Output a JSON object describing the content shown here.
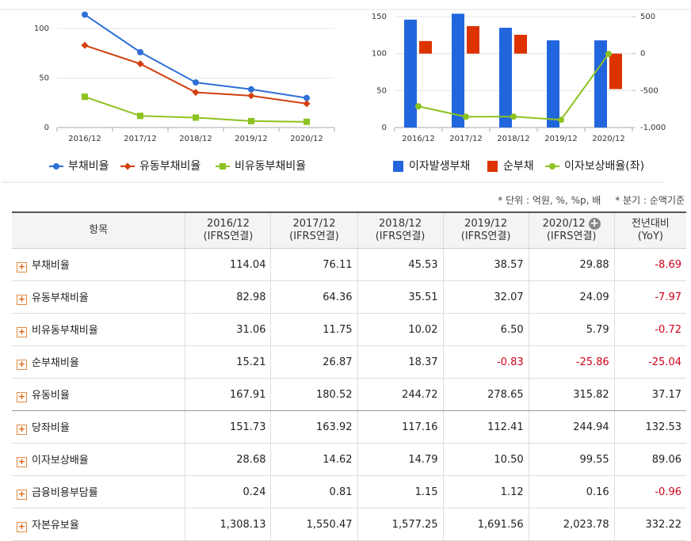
{
  "chart_data": [
    {
      "type": "line",
      "categories": [
        "2016/12",
        "2017/12",
        "2018/12",
        "2019/12",
        "2020/12"
      ],
      "series": [
        {
          "name": "부채비율",
          "color": "#2f6fd6",
          "marker": "circle",
          "values": [
            114.04,
            76.11,
            45.53,
            38.57,
            29.88
          ]
        },
        {
          "name": "유동부채비율",
          "color": "#d23f0f",
          "marker": "diamond",
          "values": [
            82.98,
            64.36,
            35.51,
            32.07,
            24.09
          ]
        },
        {
          "name": "비유동부채비율",
          "color": "#8cc21f",
          "marker": "square",
          "values": [
            31.06,
            11.75,
            10.02,
            6.5,
            5.79
          ]
        }
      ],
      "ylim": [
        0,
        120
      ],
      "yticks": [
        0,
        50,
        100
      ],
      "grid": true,
      "legend": "bottom"
    },
    {
      "type": "bar",
      "categories": [
        "2016/12",
        "2017/12",
        "2018/12",
        "2019/12",
        "2020/12"
      ],
      "series": [
        {
          "name": "이자발생부채",
          "color": "#2266dd",
          "type": "bar",
          "values": [
            146,
            154,
            135,
            118,
            118
          ]
        },
        {
          "name": "순부채",
          "color": "#dd3300",
          "type": "bar",
          "axis": "y2",
          "values": [
            170,
            372,
            255,
            null,
            -480
          ]
        },
        {
          "name": "이자보상배율(좌)",
          "color": "#8cc21f",
          "type": "line",
          "marker": "circle",
          "values": [
            28.68,
            14.62,
            14.79,
            10.5,
            99.55
          ]
        }
      ],
      "ylim": [
        0,
        160
      ],
      "yticks": [
        0,
        50,
        100,
        150
      ],
      "y2lim": [
        -1000,
        600
      ],
      "y2ticks": [
        {
          "value": -1000,
          "label": "-1,000"
        },
        -500,
        0,
        500
      ],
      "grid": true,
      "legend": "bottom"
    }
  ],
  "notes": [
    "* 단위 : 억원, %, %p, 배",
    "* 분기 : 순액기준"
  ],
  "table": {
    "header": [
      "항목",
      {
        "period": "2016/12",
        "basis": "(IFRS연결)"
      },
      {
        "period": "2017/12",
        "basis": "(IFRS연결)"
      },
      {
        "period": "2018/12",
        "basis": "(IFRS연결)"
      },
      {
        "period": "2019/12",
        "basis": "(IFRS연결)"
      },
      {
        "period": "2020/12",
        "basis": "(IFRS연결)"
      },
      {
        "period": "전년대비",
        "basis": "(YoY)"
      }
    ],
    "rows": [
      [
        "부채비율",
        "114.04",
        "76.11",
        "45.53",
        "38.57",
        "29.88",
        "-8.69"
      ],
      [
        "유동부채비율",
        "82.98",
        "64.36",
        "35.51",
        "32.07",
        "24.09",
        "-7.97"
      ],
      [
        "비유동부채비율",
        "31.06",
        "11.75",
        "10.02",
        "6.50",
        "5.79",
        "-0.72"
      ],
      [
        "순부채비율",
        "15.21",
        "26.87",
        "18.37",
        "-0.83",
        "-25.86",
        "-25.04"
      ],
      [
        "유동비율",
        "167.91",
        "180.52",
        "244.72",
        "278.65",
        "315.82",
        "37.17"
      ],
      [
        "당좌비율",
        "151.73",
        "163.92",
        "117.16",
        "112.41",
        "244.94",
        "132.53"
      ],
      [
        "이자보상배율",
        "28.68",
        "14.62",
        "14.79",
        "10.50",
        "99.55",
        "89.06"
      ],
      [
        "금융비용부담률",
        "0.24",
        "0.81",
        "1.15",
        "1.12",
        "0.16",
        "-0.96"
      ],
      [
        "자본유보율",
        "1,308.13",
        "1,550.47",
        "1,577.25",
        "1,691.56",
        "2,023.78",
        "332.22"
      ]
    ]
  }
}
